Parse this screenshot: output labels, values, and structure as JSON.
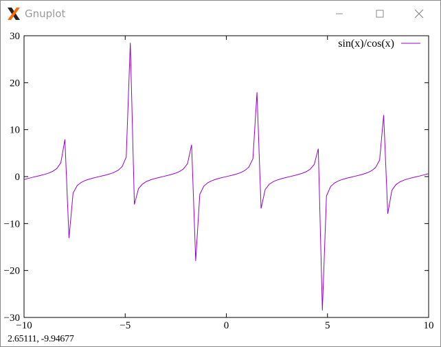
{
  "window": {
    "title": "Gnuplot",
    "icon": "x-window-icon",
    "controls": [
      "minimize-icon",
      "maximize-icon",
      "close-icon"
    ]
  },
  "status_bar": {
    "coordinates": "2.65111, -9.94677"
  },
  "colors": {
    "series": "#9400d3",
    "axes": "#000000",
    "title_text": "#999999"
  },
  "chart_data": {
    "type": "line",
    "title": "",
    "xlabel": "",
    "ylabel": "",
    "xlim": [
      -10,
      10
    ],
    "ylim": [
      -30,
      30
    ],
    "x_ticks": [
      -10,
      -5,
      0,
      5,
      10
    ],
    "y_ticks": [
      -30,
      -20,
      -10,
      0,
      10,
      20,
      30
    ],
    "x_tick_labels": [
      "−10",
      "−5",
      "0",
      "5",
      "10"
    ],
    "y_tick_labels": [
      "−30",
      "−20",
      "−10",
      "0",
      "10",
      "20",
      "30"
    ],
    "grid": false,
    "legend_position": "top-right",
    "series": [
      {
        "name": "sin(x)/cos(x)",
        "function": "tan(x)",
        "samples": 100,
        "color": "#9400d3"
      }
    ]
  }
}
